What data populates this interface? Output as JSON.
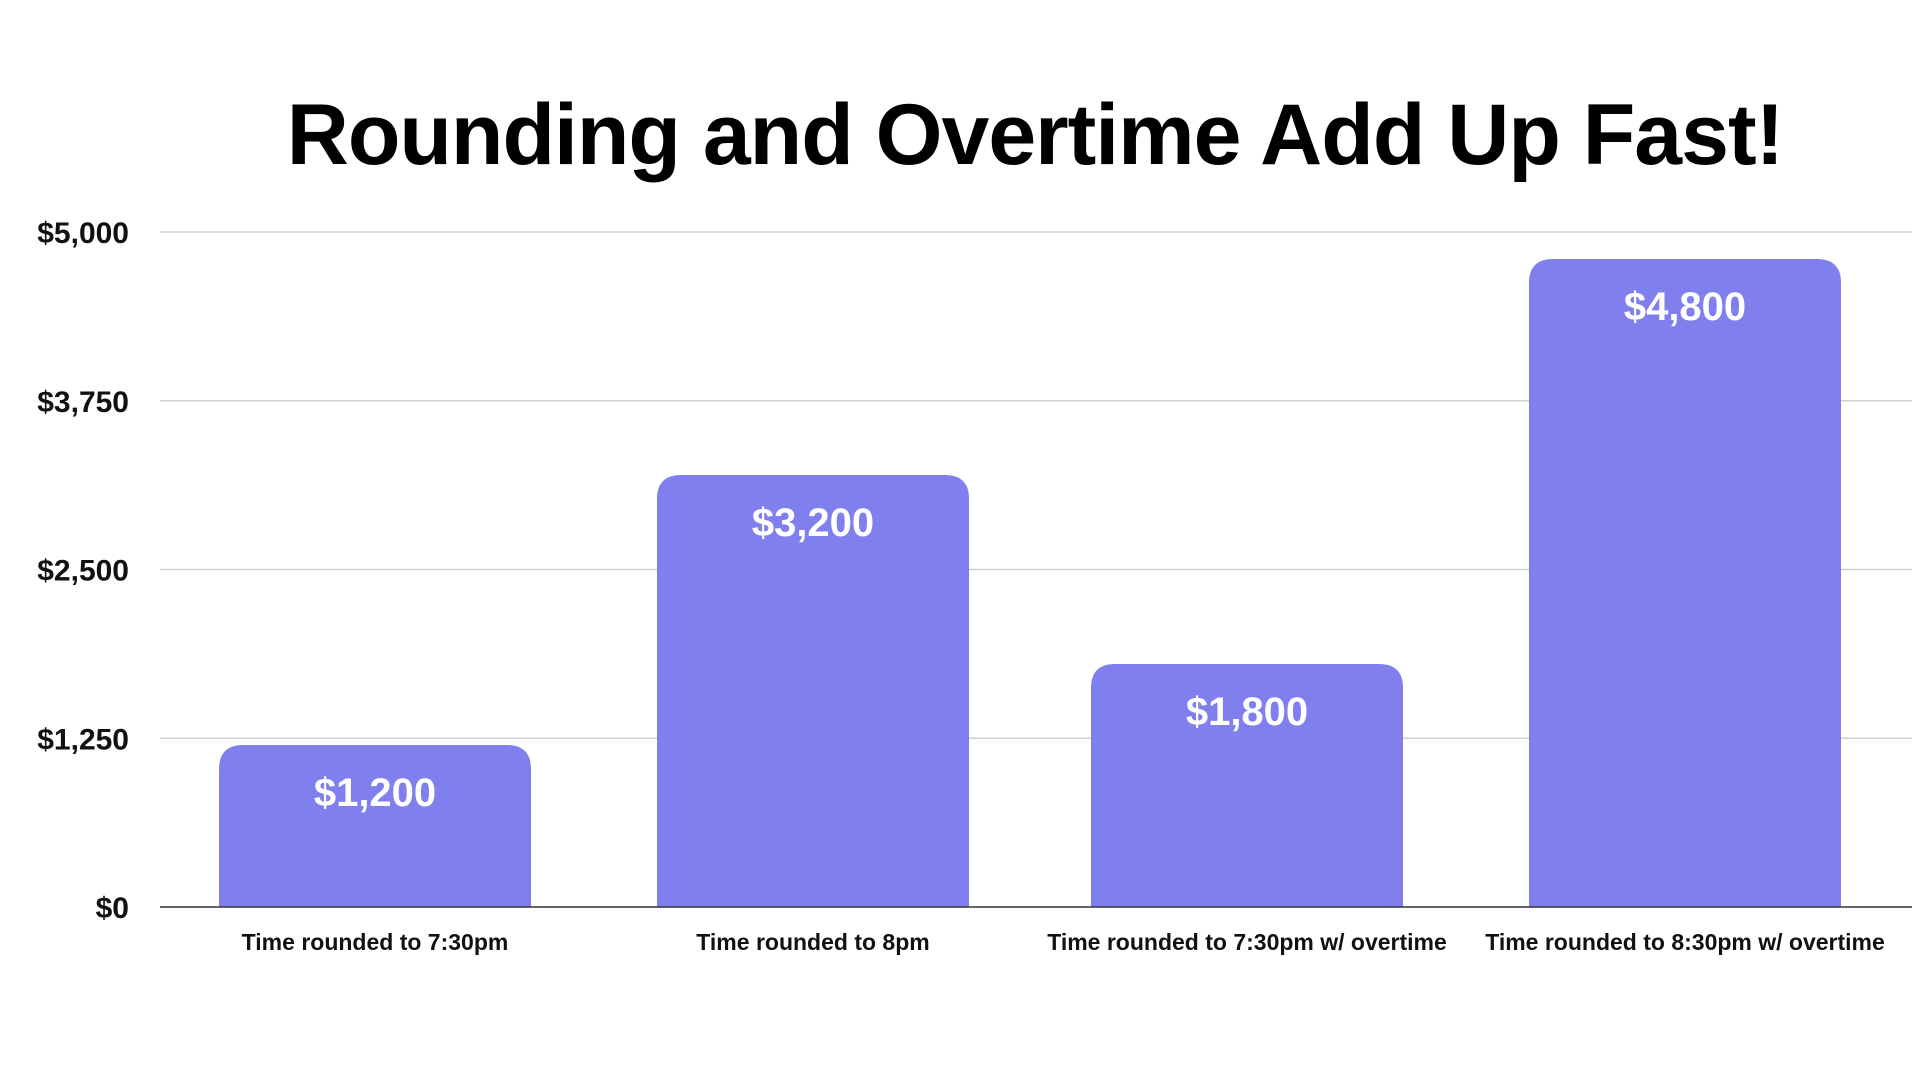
{
  "chart_data": {
    "type": "bar",
    "title": "Rounding and Overtime Add Up Fast!",
    "xlabel": "",
    "ylabel": "",
    "categories": [
      "Time rounded to 7:30pm",
      "Time rounded to 8pm",
      "Time rounded to 7:30pm w/ overtime",
      "Time rounded to 8:30pm w/ overtime"
    ],
    "values": [
      1200,
      3200,
      1800,
      4800
    ],
    "data_labels": [
      "$1,200",
      "$3,200",
      "$1,800",
      "$4,800"
    ],
    "ylim": [
      0,
      5000
    ],
    "yticks": [
      0,
      1250,
      2500,
      3750,
      5000
    ],
    "ytick_labels": [
      "$0",
      "$1,250",
      "$2,500",
      "$3,750",
      "$5,000"
    ],
    "grid": true,
    "legend": "none",
    "colors": {
      "bar": "#7f80ee",
      "grid": "#d0d0d0",
      "axis": "#333333"
    }
  }
}
